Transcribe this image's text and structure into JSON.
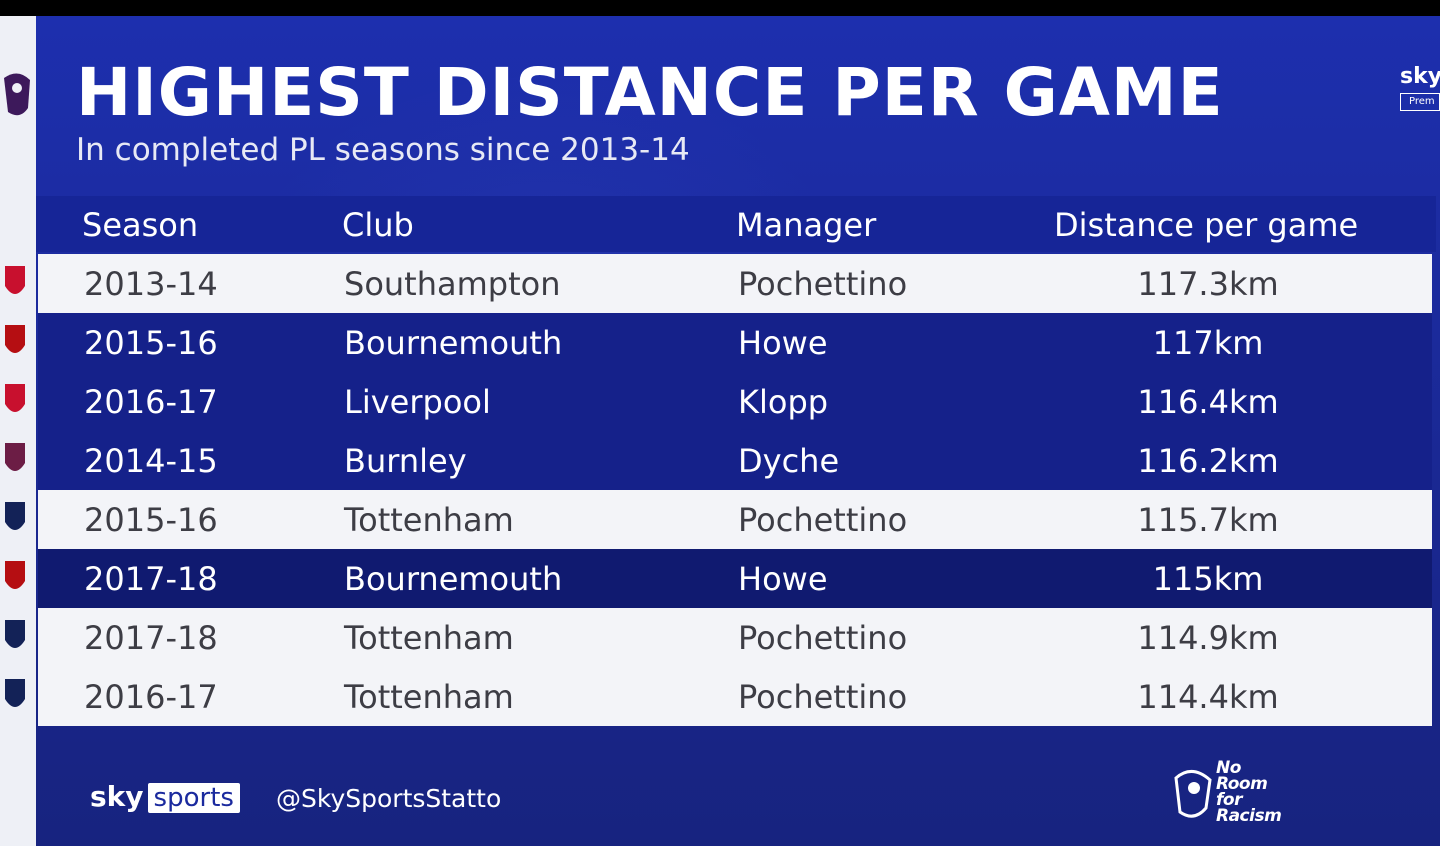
{
  "title": "HIGHEST DISTANCE PER GAME",
  "subtitle": "In completed PL seasons since 2013-14",
  "columns": [
    "Season",
    "Club",
    "Manager",
    "Distance per game"
  ],
  "rows": [
    {
      "season": "2013-14",
      "club": "Southampton",
      "manager": "Pochettino",
      "distance": "117.3km",
      "style": "light",
      "crest": "southampton-crest-icon",
      "crest_color": "#c8102e"
    },
    {
      "season": "2015-16",
      "club": "Bournemouth",
      "manager": "Howe",
      "distance": "117km",
      "style": "dark",
      "crest": "bournemouth-crest-icon",
      "crest_color": "#b50e12"
    },
    {
      "season": "2016-17",
      "club": "Liverpool",
      "manager": "Klopp",
      "distance": "116.4km",
      "style": "dark",
      "crest": "liverpool-crest-icon",
      "crest_color": "#c8102e"
    },
    {
      "season": "2014-15",
      "club": "Burnley",
      "manager": "Dyche",
      "distance": "116.2km",
      "style": "dark",
      "crest": "burnley-crest-icon",
      "crest_color": "#6c1d45"
    },
    {
      "season": "2015-16",
      "club": "Tottenham",
      "manager": "Pochettino",
      "distance": "115.7km",
      "style": "light",
      "crest": "tottenham-crest-icon",
      "crest_color": "#132257"
    },
    {
      "season": "2017-18",
      "club": "Bournemouth",
      "manager": "Howe",
      "distance": "115km",
      "style": "darker",
      "crest": "bournemouth-crest-icon",
      "crest_color": "#b50e12"
    },
    {
      "season": "2017-18",
      "club": "Tottenham",
      "manager": "Pochettino",
      "distance": "114.9km",
      "style": "light",
      "crest": "tottenham-crest-icon",
      "crest_color": "#132257"
    },
    {
      "season": "2016-17",
      "club": "Tottenham",
      "manager": "Pochettino",
      "distance": "114.4km",
      "style": "light",
      "crest": "tottenham-crest-icon",
      "crest_color": "#132257"
    }
  ],
  "footer": {
    "logo_sky": "sky",
    "logo_sports": "sports",
    "handle": "@SkySportsStatto",
    "campaign_logo_text": "No Room for Racism"
  },
  "corner_logo": {
    "sky": "sky",
    "badge": "Prem"
  },
  "colors": {
    "panel": "#1b2a9e",
    "row_light": "#f3f4f8",
    "row_dark": "#15218a",
    "row_darker": "#101a70"
  }
}
